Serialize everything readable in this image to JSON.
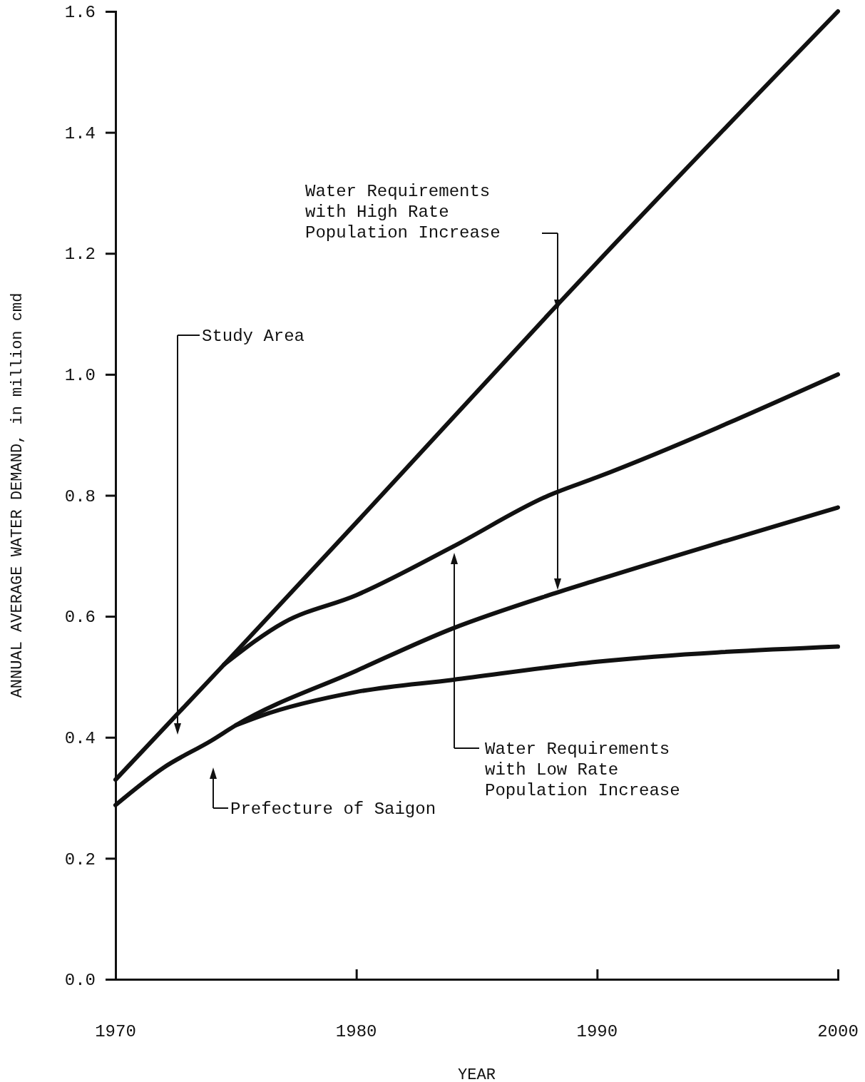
{
  "chart_data": {
    "type": "line",
    "xlabel": "YEAR",
    "ylabel": "ANNUAL AVERAGE WATER DEMAND, in million cmd",
    "xlim": [
      1970,
      2000
    ],
    "xticks": [
      1970,
      1980,
      1990,
      2000
    ],
    "ylim": [
      0,
      1.6
    ],
    "yticks": [
      {
        "value": 0,
        "label": "0.0"
      },
      {
        "value": 0.2,
        "label": "0.2"
      },
      {
        "value": 0.4,
        "label": "0.4"
      },
      {
        "value": 0.6,
        "label": "0.6"
      },
      {
        "value": 0.8,
        "label": "0.8"
      },
      {
        "value": 1,
        "label": "1.0"
      },
      {
        "value": 1.2,
        "label": "1.2"
      },
      {
        "value": 1.4,
        "label": "1.4"
      },
      {
        "value": 1.6,
        "label": "1.6"
      }
    ],
    "grid": false,
    "marker": "none",
    "line_style": "solid",
    "series": [
      {
        "color": "#111111",
        "x": [
          1970,
          1974.5,
          1980,
          1988,
          1990,
          2000
        ],
        "values": [
          0.33,
          0.52,
          0.755,
          1.1,
          1.185,
          1.6
        ]
      },
      {
        "color": "#111111",
        "x": [
          1974.5,
          1977,
          1980,
          1984,
          1988,
          1990,
          2000
        ],
        "values": [
          0.52,
          0.59,
          0.635,
          0.715,
          0.8,
          0.83,
          1.0
        ]
      },
      {
        "color": "#111111",
        "x": [
          1970,
          1972,
          1974,
          1975,
          1980,
          1984,
          1988,
          1990,
          2000
        ],
        "values": [
          0.288,
          0.35,
          0.395,
          0.42,
          0.51,
          0.58,
          0.635,
          0.66,
          0.78
        ]
      },
      {
        "color": "#111111",
        "x": [
          1975,
          1976,
          1980,
          1984,
          1990,
          2000
        ],
        "values": [
          0.42,
          0.435,
          0.475,
          0.495,
          0.525,
          0.55
        ]
      }
    ],
    "annotations": [
      "Study Area",
      "Prefecture of Saigon",
      "Water Requirements\nwith High Rate\nPopulation Increase",
      "Water Requirements\nwith Low Rate\nPopulation Increase"
    ]
  }
}
